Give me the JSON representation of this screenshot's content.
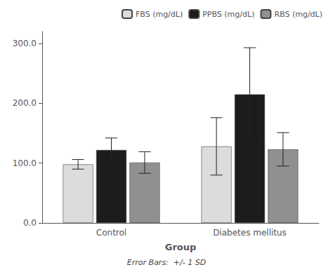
{
  "chart_data": {
    "type": "bar",
    "xlabel": "Group",
    "footnote": "Error Bars:  +/- 1 SD",
    "categories": [
      "Control",
      "Diabetes mellitus"
    ],
    "series": [
      {
        "name": "FBS (mg/dL)",
        "color": "#dcdcdc",
        "values": [
          98.0,
          128.0
        ],
        "errors": [
          8.0,
          48.0
        ]
      },
      {
        "name": "PPBS (mg/dL)",
        "color": "#1c1c1c",
        "values": [
          122.0,
          215.0
        ],
        "errors": [
          20.0,
          78.0
        ]
      },
      {
        "name": "RBS (mg/dL)",
        "color": "#909090",
        "values": [
          101.0,
          123.0
        ],
        "errors": [
          18.0,
          28.0
        ]
      }
    ],
    "ylim": [
      0,
      320
    ],
    "yticks": [
      {
        "value": 0,
        "label": "0.0"
      },
      {
        "value": 100,
        "label": "100.0"
      },
      {
        "value": 200,
        "label": "200.0"
      },
      {
        "value": 300,
        "label": "300.0"
      }
    ],
    "grid": false,
    "legend": "upper right"
  }
}
